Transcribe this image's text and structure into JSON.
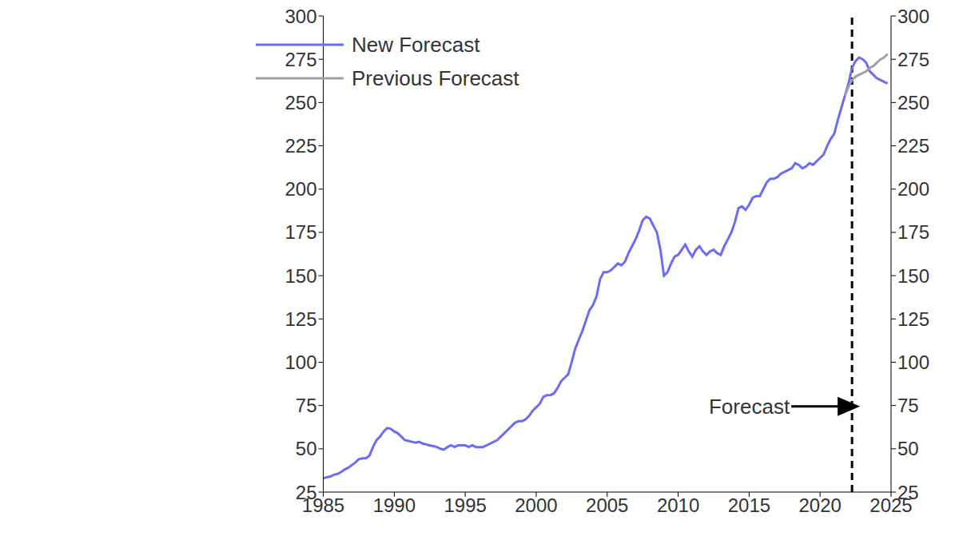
{
  "chart_data": {
    "type": "line",
    "x": [
      1985,
      1985.25,
      1985.5,
      1985.75,
      1986,
      1986.25,
      1986.5,
      1986.75,
      1987,
      1987.25,
      1987.5,
      1987.75,
      1988,
      1988.25,
      1988.5,
      1988.75,
      1989,
      1989.25,
      1989.5,
      1989.75,
      1990,
      1990.25,
      1990.5,
      1990.75,
      1991,
      1991.25,
      1991.5,
      1991.75,
      1992,
      1992.25,
      1992.5,
      1992.75,
      1993,
      1993.25,
      1993.5,
      1993.75,
      1994,
      1994.25,
      1994.5,
      1994.75,
      1995,
      1995.25,
      1995.5,
      1995.75,
      1996,
      1996.25,
      1996.5,
      1996.75,
      1997,
      1997.25,
      1997.5,
      1997.75,
      1998,
      1998.25,
      1998.5,
      1998.75,
      1999,
      1999.25,
      1999.5,
      1999.75,
      2000,
      2000.25,
      2000.5,
      2000.75,
      2001,
      2001.25,
      2001.5,
      2001.75,
      2002,
      2002.25,
      2002.5,
      2002.75,
      2003,
      2003.25,
      2003.5,
      2003.75,
      2004,
      2004.25,
      2004.5,
      2004.75,
      2005,
      2005.25,
      2005.5,
      2005.75,
      2006,
      2006.25,
      2006.5,
      2006.75,
      2007,
      2007.25,
      2007.5,
      2007.75,
      2008,
      2008.25,
      2008.5,
      2008.75,
      2009,
      2009.25,
      2009.5,
      2009.75,
      2010,
      2010.25,
      2010.5,
      2010.75,
      2011,
      2011.25,
      2011.5,
      2011.75,
      2012,
      2012.25,
      2012.5,
      2012.75,
      2013,
      2013.25,
      2013.5,
      2013.75,
      2014,
      2014.25,
      2014.5,
      2014.75,
      2015,
      2015.25,
      2015.5,
      2015.75,
      2016,
      2016.25,
      2016.5,
      2016.75,
      2017,
      2017.25,
      2017.5,
      2017.75,
      2018,
      2018.25,
      2018.5,
      2018.75,
      2019,
      2019.25,
      2019.5,
      2019.75,
      2020,
      2020.25,
      2020.5,
      2020.75,
      2021,
      2021.25,
      2021.5,
      2021.75,
      2022,
      2022.25,
      2022.5,
      2022.75,
      2023,
      2023.25,
      2023.5,
      2023.75,
      2024,
      2024.25,
      2024.5,
      2024.75
    ],
    "series": [
      {
        "name": "New Forecast",
        "color": "#6b6bf7",
        "values": [
          33,
          33.5,
          34,
          35,
          35.5,
          36.5,
          38,
          39,
          40.5,
          42,
          44,
          44.5,
          44.5,
          46,
          51,
          55,
          57,
          60,
          62,
          61.5,
          60,
          59,
          57,
          55,
          54.5,
          54,
          53.5,
          54,
          53,
          52.5,
          52,
          51.5,
          51,
          50,
          49.5,
          51,
          52,
          51,
          52,
          52,
          52,
          51,
          52,
          51,
          51,
          51,
          52,
          53,
          54,
          55,
          57,
          59,
          61,
          63,
          65,
          66,
          66,
          67,
          69,
          72,
          74,
          76,
          80,
          81,
          81,
          82,
          85,
          89,
          91,
          93,
          100,
          108,
          113,
          118,
          124,
          130,
          133,
          138,
          148,
          152,
          152,
          153,
          155,
          157,
          156,
          158,
          163,
          167,
          171,
          176,
          182,
          184,
          183,
          179,
          175,
          165,
          150,
          152,
          157,
          161,
          162,
          165,
          168,
          164,
          161,
          165,
          167,
          164,
          162,
          164,
          165,
          163,
          162,
          167,
          171,
          175,
          181,
          189,
          190,
          188,
          191,
          195,
          196,
          196,
          200,
          204,
          206,
          206,
          207,
          209,
          210,
          211,
          212,
          215,
          214,
          212,
          213,
          215,
          214,
          216,
          218,
          220,
          225,
          229,
          232,
          240,
          247,
          254,
          261,
          270,
          274,
          276,
          275,
          273,
          268,
          266,
          264,
          263,
          262,
          261
        ]
      },
      {
        "name": "Previous Forecast",
        "color": "#a0a0a0",
        "values": [
          null,
          null,
          null,
          null,
          null,
          null,
          null,
          null,
          null,
          null,
          null,
          null,
          null,
          null,
          null,
          null,
          null,
          null,
          null,
          null,
          null,
          null,
          null,
          null,
          null,
          null,
          null,
          null,
          null,
          null,
          null,
          null,
          null,
          null,
          null,
          null,
          null,
          null,
          null,
          null,
          null,
          null,
          null,
          null,
          null,
          null,
          null,
          null,
          null,
          null,
          null,
          null,
          null,
          null,
          null,
          null,
          null,
          null,
          null,
          null,
          null,
          null,
          null,
          null,
          null,
          null,
          null,
          null,
          null,
          null,
          null,
          null,
          null,
          null,
          null,
          null,
          null,
          null,
          null,
          null,
          null,
          null,
          null,
          null,
          null,
          null,
          null,
          null,
          null,
          null,
          null,
          null,
          null,
          null,
          null,
          null,
          null,
          null,
          null,
          null,
          null,
          null,
          null,
          null,
          null,
          null,
          null,
          null,
          null,
          null,
          null,
          null,
          null,
          null,
          null,
          null,
          null,
          null,
          null,
          null,
          null,
          null,
          null,
          null,
          null,
          null,
          null,
          null,
          null,
          null,
          null,
          null,
          null,
          null,
          null,
          null,
          null,
          null,
          null,
          null,
          null,
          null,
          null,
          null,
          null,
          null,
          null,
          254,
          259,
          263,
          265,
          266,
          267,
          268,
          270,
          271,
          273,
          275,
          276,
          278
        ]
      }
    ],
    "xlim": [
      1985,
      2025
    ],
    "xticks": [
      1985,
      1990,
      1995,
      2000,
      2005,
      2010,
      2015,
      2020,
      2025
    ],
    "ylim": [
      25,
      300
    ],
    "yticks": [
      25,
      50,
      75,
      100,
      125,
      150,
      175,
      200,
      225,
      250,
      275,
      300
    ],
    "grid": false,
    "legend": "top",
    "forecast_start": 2022.25,
    "annotation": "Forecast"
  }
}
